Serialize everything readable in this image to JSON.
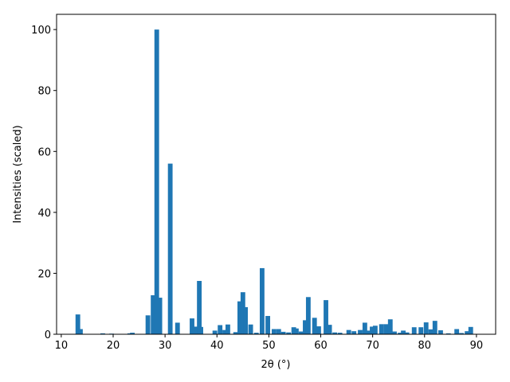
{
  "chart_data": {
    "type": "bar",
    "x_label": "2θ (°)",
    "y_label": "Intensities (scaled)",
    "color": "#1f77b4",
    "x": [
      13.2,
      13.7,
      18.0,
      19.7,
      23.2,
      23.7,
      26.7,
      27.7,
      28.4,
      29.0,
      31.0,
      32.4,
      35.2,
      35.8,
      36.6,
      36.9,
      39.6,
      40.6,
      41.5,
      42.1,
      43.6,
      44.4,
      45.0,
      45.5,
      46.5,
      47.6,
      48.7,
      49.8,
      51.0,
      51.9,
      52.8,
      53.8,
      54.8,
      55.3,
      56.2,
      57.0,
      57.6,
      58.8,
      59.6,
      61.0,
      61.7,
      62.7,
      63.7,
      65.4,
      66.4,
      67.6,
      68.5,
      69.3,
      69.9,
      70.5,
      71.7,
      72.6,
      73.4,
      74.2,
      75.3,
      75.9,
      76.6,
      78.0,
      79.3,
      80.3,
      81.2,
      82.0,
      83.1,
      84.6,
      86.2,
      87.1,
      88.2,
      88.9
    ],
    "values": [
      6.5,
      1.7,
      0.3,
      0.2,
      0.3,
      0.5,
      6.2,
      12.8,
      100,
      12,
      56,
      3.8,
      5.2,
      2.5,
      17.5,
      2.4,
      1.2,
      3,
      1.4,
      3.2,
      0.7,
      10.8,
      13.8,
      8.9,
      3.2,
      0.5,
      21.7,
      6,
      1.7,
      1.7,
      0.8,
      0.6,
      2.3,
      1.9,
      0.9,
      4.6,
      12.2,
      5.4,
      2.6,
      11.2,
      3.1,
      0.6,
      0.5,
      1.4,
      1.0,
      1.4,
      3.8,
      1.2,
      2.5,
      2.8,
      3.3,
      3.3,
      4.9,
      0.9,
      0.5,
      1.2,
      0.6,
      2.3,
      2.3,
      3.9,
      1.6,
      4.4,
      1.3,
      0.3,
      1.7,
      0.4,
      1.0,
      2.4
    ],
    "xlim": [
      9.1,
      93.7
    ],
    "ylim": [
      0,
      105
    ],
    "xticks": [
      10,
      20,
      30,
      40,
      50,
      60,
      70,
      80,
      90
    ],
    "yticks": [
      0,
      20,
      40,
      60,
      80,
      100
    ]
  }
}
